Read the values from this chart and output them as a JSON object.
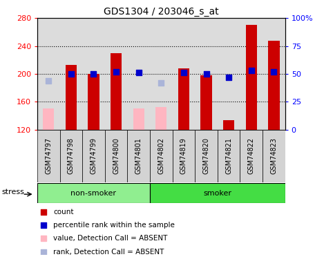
{
  "title": "GDS1304 / 203046_s_at",
  "samples": [
    "GSM74797",
    "GSM74798",
    "GSM74799",
    "GSM74800",
    "GSM74801",
    "GSM74802",
    "GSM74819",
    "GSM74820",
    "GSM74821",
    "GSM74822",
    "GSM74823"
  ],
  "groups": [
    {
      "name": "non-smoker",
      "start": 0,
      "end": 5,
      "color": "#90ee90"
    },
    {
      "name": "smoker",
      "start": 5,
      "end": 11,
      "color": "#44dd44"
    }
  ],
  "group_label": "stress",
  "bar_values": [
    null,
    213,
    200,
    230,
    null,
    null,
    208,
    198,
    133,
    270,
    248
  ],
  "bar_absent_values": [
    150,
    null,
    null,
    null,
    150,
    152,
    null,
    null,
    null,
    null,
    null
  ],
  "rank_values": [
    null,
    50,
    50,
    52,
    51,
    null,
    51,
    50,
    47,
    53,
    52
  ],
  "rank_absent_values": [
    44,
    null,
    null,
    null,
    null,
    42,
    null,
    null,
    null,
    null,
    null
  ],
  "ylim_left": [
    120,
    280
  ],
  "ylim_right": [
    0,
    100
  ],
  "yticks_left": [
    120,
    160,
    200,
    240,
    280
  ],
  "yticks_right": [
    0,
    25,
    50,
    75,
    100
  ],
  "ytick_labels_right": [
    "0",
    "25",
    "50",
    "75",
    "100%"
  ],
  "bar_color": "#cc0000",
  "bar_absent_color": "#ffb6c1",
  "rank_color": "#0000cc",
  "rank_absent_color": "#aab4d8",
  "bar_width": 0.5,
  "rank_marker_size": 40
}
